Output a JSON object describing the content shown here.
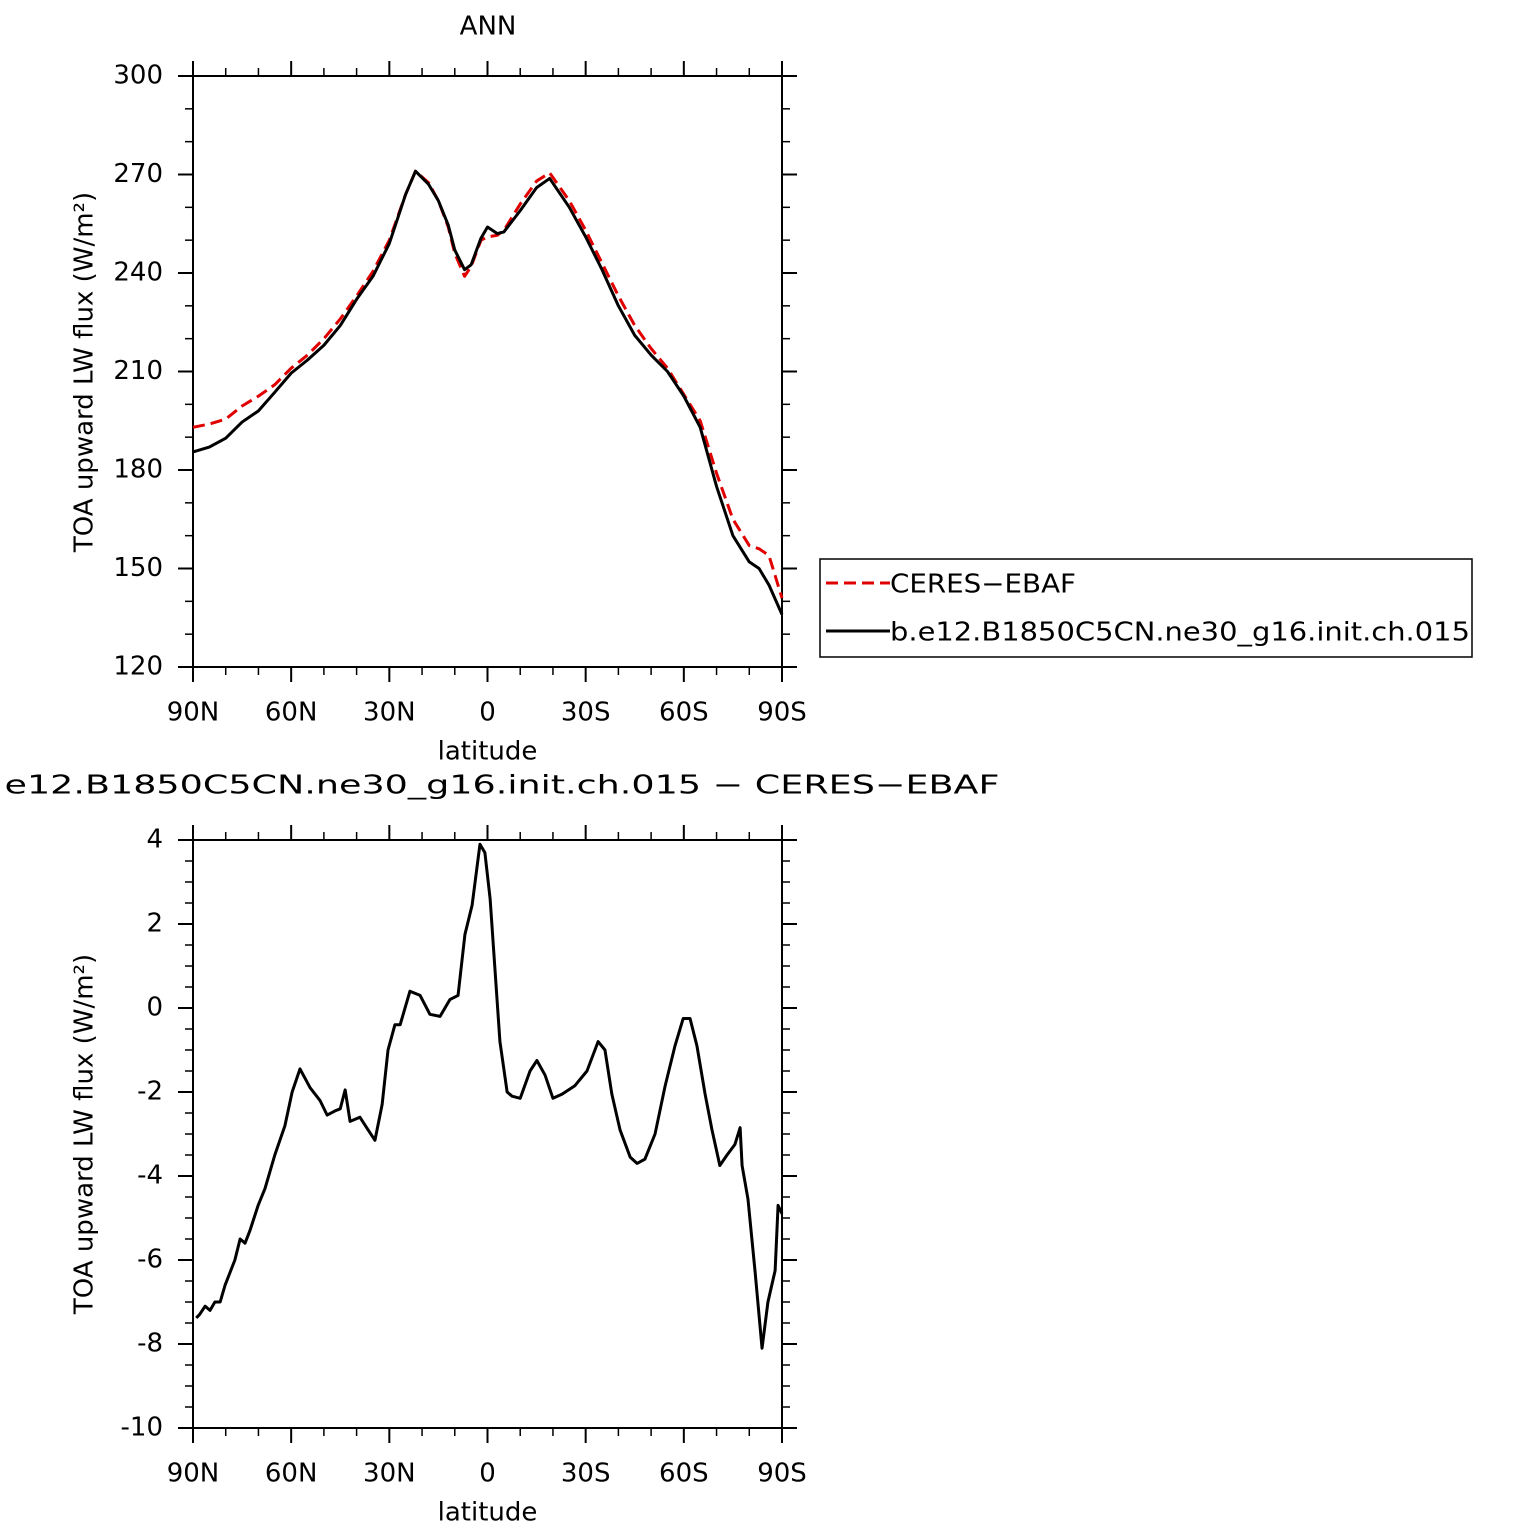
{
  "chart_data": [
    {
      "type": "line",
      "title": "ANN",
      "x_label": "latitude",
      "y_label": "TOA upward LW flux (W/m²)",
      "x": [
        90,
        85,
        80,
        75,
        70,
        65,
        60,
        55,
        50,
        45,
        40,
        35,
        30,
        25,
        22,
        18,
        15,
        12,
        10,
        7,
        5,
        2,
        0,
        -3,
        -5,
        -10,
        -15,
        -19,
        -25,
        -30,
        -35,
        -40,
        -45,
        -50,
        -55,
        -60,
        -65,
        -70,
        -75,
        -80,
        -83,
        -86,
        -90
      ],
      "series": [
        {
          "name": "CERES−EBAF",
          "color": "#e00000",
          "style": "dashed",
          "values": [
            193,
            194,
            195.5,
            199.5,
            202.5,
            206,
            211,
            215,
            220,
            226,
            233,
            240.5,
            250,
            264,
            271,
            267.5,
            262,
            254,
            246,
            239,
            242,
            250,
            251,
            251.5,
            253,
            261,
            268,
            270.5,
            262,
            253,
            243,
            233,
            224,
            217,
            211,
            203,
            195,
            179,
            165,
            157,
            156,
            154,
            141
          ]
        },
        {
          "name": "b.e12.B1850C5CN.ne30_g16.init.ch.015",
          "color": "#000000",
          "style": "solid",
          "values": [
            185.5,
            187,
            189.7,
            194.6,
            198,
            203.7,
            209.5,
            213.5,
            218,
            224,
            232,
            239,
            249,
            264,
            271,
            267,
            262,
            254.6,
            247,
            241,
            242.5,
            250.6,
            254,
            252,
            252.5,
            259,
            266,
            268.8,
            260,
            251,
            241,
            230,
            221,
            215,
            210,
            202.5,
            193,
            175,
            160,
            152,
            150,
            145,
            136
          ]
        }
      ],
      "xlim": [
        90,
        -90
      ],
      "xticks": [
        {
          "value": 90,
          "label": "90N"
        },
        {
          "value": 60,
          "label": "60N"
        },
        {
          "value": 30,
          "label": "30N"
        },
        0,
        {
          "value": -30,
          "label": "30S"
        },
        {
          "value": -60,
          "label": "60S"
        },
        {
          "value": -90,
          "label": "90S"
        }
      ],
      "xminorticks": [
        80,
        70,
        50,
        40,
        20,
        10,
        -10,
        -20,
        -40,
        -50,
        -70,
        -80
      ],
      "ylim": [
        120,
        300
      ],
      "yticks": [
        120,
        150,
        180,
        210,
        240,
        270,
        300
      ],
      "yminorticks": [
        130,
        140,
        160,
        170,
        190,
        200,
        220,
        230,
        250,
        260,
        280,
        290
      ],
      "legend": "outside-right"
    },
    {
      "type": "line",
      "title": "e12.B1850C5CN.ne30_g16.init.ch.015 − CERES−EBAF",
      "x_label": "latitude",
      "y_label": "TOA upward LW flux (W/m²)",
      "x": [
        89,
        88,
        86.3,
        84.8,
        83.3,
        81.7,
        80.2,
        77.2,
        75.6,
        74.1,
        72.6,
        70.1,
        68,
        65,
        61.9,
        59.7,
        57.3,
        54.2,
        51.2,
        49,
        46.6,
        45,
        43.5,
        42,
        39,
        36.5,
        34.4,
        32.2,
        30.4,
        28.3,
        26.7,
        23.7,
        20.6,
        17.6,
        14.5,
        11.5,
        9,
        6.9,
        4.7,
        2.3,
        0.8,
        -0.8,
        -3.8,
        -6,
        -7.5,
        -10,
        -13,
        -15.1,
        -17.6,
        -20,
        -22.8,
        -26.7,
        -30.4,
        -33.8,
        -35.9,
        -38,
        -40.5,
        -43.6,
        -45.7,
        -48.1,
        -51.2,
        -54.3,
        -57.3,
        -59.8,
        -61.9,
        -64,
        -66.5,
        -68.6,
        -71,
        -73.2,
        -75.6,
        -77.2,
        -77.8,
        -79.6,
        -81.8,
        -83.9,
        -85.7,
        -87.9,
        -88.8,
        -90
      ],
      "values": [
        -7.38,
        -7.3,
        -7.1,
        -7.2,
        -7,
        -7,
        -6.6,
        -6,
        -5.5,
        -5.6,
        -5.3,
        -4.7,
        -4.3,
        -3.5,
        -2.8,
        -2,
        -1.45,
        -1.9,
        -2.2,
        -2.55,
        -2.45,
        -2.4,
        -1.95,
        -2.7,
        -2.6,
        -2.9,
        -3.15,
        -2.3,
        -1,
        -0.4,
        -0.4,
        0.4,
        0.3,
        -0.15,
        -0.2,
        0.2,
        0.3,
        1.75,
        2.45,
        3.9,
        3.7,
        2.6,
        -0.8,
        -2,
        -2.1,
        -2.15,
        -1.5,
        -1.25,
        -1.6,
        -2.15,
        -2.05,
        -1.85,
        -1.5,
        -0.8,
        -1,
        -2.05,
        -2.9,
        -3.55,
        -3.7,
        -3.6,
        -3,
        -1.85,
        -0.9,
        -0.25,
        -0.25,
        -0.9,
        -2.05,
        -2.9,
        -3.75,
        -3.5,
        -3.25,
        -2.85,
        -3.75,
        -4.55,
        -6.3,
        -8.1,
        -7,
        -6.25,
        -4.7,
        -4.9
      ],
      "color": "#000000",
      "xlim": [
        90,
        -90
      ],
      "xticks": [
        {
          "value": 90,
          "label": "90N"
        },
        {
          "value": 60,
          "label": "60N"
        },
        {
          "value": 30,
          "label": "30N"
        },
        0,
        {
          "value": -30,
          "label": "30S"
        },
        {
          "value": -60,
          "label": "60S"
        },
        {
          "value": -90,
          "label": "90S"
        }
      ],
      "xminorticks": [
        80,
        70,
        50,
        40,
        20,
        10,
        -10,
        -20,
        -40,
        -50,
        -70,
        -80
      ],
      "ylim": [
        -10,
        4
      ],
      "yticks": [
        -10,
        -8,
        -6,
        -4,
        -2,
        0,
        2,
        4
      ],
      "yminorticks": [
        -9.5,
        -9,
        -8.5,
        -7.5,
        -7,
        -6.5,
        -5.5,
        -5,
        -4.5,
        -3.5,
        -3,
        -2.5,
        -1.5,
        -1,
        -0.5,
        0.5,
        1,
        1.5,
        2.5,
        3,
        3.5
      ]
    }
  ]
}
